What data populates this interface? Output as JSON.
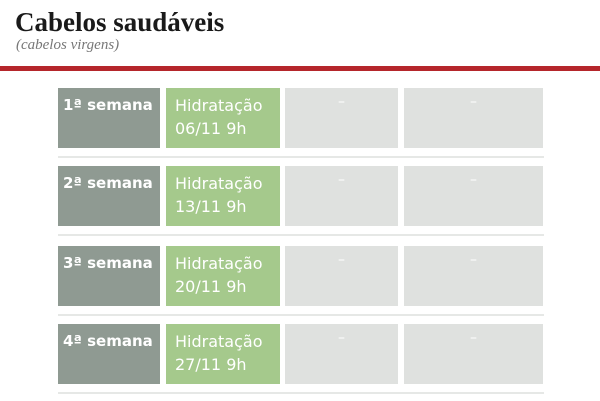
{
  "header": {
    "title": "Cabelos saudáveis",
    "subtitle": "(cabelos virgens)"
  },
  "table": {
    "rows": [
      [
        "1ª semana",
        "Hidratação",
        "06/11 9h",
        "–",
        "–"
      ],
      [
        "2ª semana",
        "Hidratação",
        "13/11 9h",
        "–",
        "–"
      ],
      [
        "3ª semana",
        "Hidratação",
        "20/11 9h",
        "–",
        "–"
      ],
      [
        "4ª semana",
        "Hidratação",
        "27/11 9h",
        "–",
        "–"
      ]
    ]
  }
}
